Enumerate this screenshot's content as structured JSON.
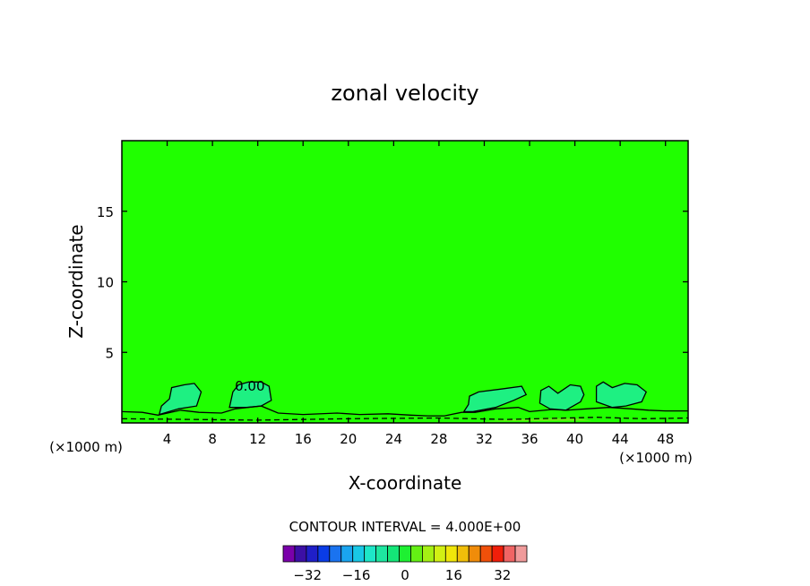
{
  "chart_data": {
    "type": "contour",
    "title": "zonal velocity",
    "xlabel": "X-coordinate",
    "ylabel": "Z-coordinate",
    "x_unit_label": "(×1000 m)",
    "xlim": [
      0,
      50
    ],
    "ylim": [
      0,
      20
    ],
    "x_ticks": [
      4,
      8,
      12,
      16,
      20,
      24,
      28,
      32,
      36,
      40,
      44,
      48
    ],
    "y_ticks": [
      5,
      10,
      15
    ],
    "contour_labels": [
      {
        "x": 11.3,
        "y": 2.3,
        "text": "0.00"
      }
    ],
    "contour_interval_text": "CONTOUR INTERVAL = 4.000E+00",
    "colorbar": {
      "levels": [
        -40,
        -36,
        -32,
        -28,
        -24,
        -20,
        -16,
        -12,
        -8,
        -4,
        0,
        4,
        8,
        12,
        16,
        20,
        24,
        28,
        32,
        36,
        40
      ],
      "colors": [
        "#7a00aa",
        "#3c0fa5",
        "#1f1fc8",
        "#0a3ce6",
        "#1a73f0",
        "#1aa5f0",
        "#19c8e6",
        "#1ee6c8",
        "#1ee6a0",
        "#14e678",
        "#1ef032",
        "#64f014",
        "#a5f014",
        "#d2f014",
        "#f0e60a",
        "#f0be0a",
        "#f08c0a",
        "#f0500a",
        "#f01e0a",
        "#f06464",
        "#f09b9b"
      ],
      "tick_values": [
        -32,
        -16,
        0,
        16,
        32
      ],
      "tick_labels": [
        "−32",
        "−16",
        "0",
        "16",
        "32"
      ]
    },
    "background_field_color": "#20ff00",
    "contour_regions": [
      {
        "name": "region-1",
        "level": -4,
        "color": "#1ef082",
        "polygon": [
          [
            3.3,
            0.6
          ],
          [
            3.5,
            1.2
          ],
          [
            4.2,
            1.7
          ],
          [
            4.4,
            2.5
          ],
          [
            5.5,
            2.7
          ],
          [
            6.4,
            2.8
          ],
          [
            7.0,
            2.2
          ],
          [
            6.6,
            1.2
          ],
          [
            5.0,
            1.0
          ],
          [
            3.3,
            0.6
          ]
        ]
      },
      {
        "name": "region-2",
        "level": -4,
        "color": "#1ef082",
        "polygon": [
          [
            9.5,
            1.1
          ],
          [
            9.8,
            2.2
          ],
          [
            10.3,
            2.7
          ],
          [
            11.2,
            2.9
          ],
          [
            12.3,
            2.9
          ],
          [
            13.0,
            2.6
          ],
          [
            13.2,
            1.6
          ],
          [
            12.3,
            1.2
          ],
          [
            11.0,
            1.1
          ],
          [
            9.5,
            1.1
          ]
        ]
      },
      {
        "name": "region-3",
        "level": -4,
        "color": "#1ef082",
        "polygon": [
          [
            30.2,
            0.8
          ],
          [
            30.6,
            1.3
          ],
          [
            30.7,
            1.9
          ],
          [
            31.5,
            2.2
          ],
          [
            33.5,
            2.4
          ],
          [
            35.3,
            2.6
          ],
          [
            35.7,
            2.0
          ],
          [
            34.6,
            1.6
          ],
          [
            33.0,
            1.1
          ],
          [
            31.0,
            0.8
          ],
          [
            30.2,
            0.8
          ]
        ]
      },
      {
        "name": "region-4",
        "level": -4,
        "color": "#1ef082",
        "polygon": [
          [
            36.9,
            1.4
          ],
          [
            37.0,
            2.3
          ],
          [
            37.7,
            2.6
          ],
          [
            38.5,
            2.1
          ],
          [
            39.6,
            2.7
          ],
          [
            40.5,
            2.6
          ],
          [
            40.8,
            2.0
          ],
          [
            40.5,
            1.5
          ],
          [
            39.2,
            0.9
          ],
          [
            37.8,
            1.0
          ],
          [
            36.9,
            1.4
          ]
        ]
      },
      {
        "name": "region-5",
        "level": -4,
        "color": "#1ef082",
        "polygon": [
          [
            41.9,
            1.5
          ],
          [
            41.9,
            2.6
          ],
          [
            42.5,
            2.9
          ],
          [
            43.3,
            2.5
          ],
          [
            44.4,
            2.8
          ],
          [
            45.5,
            2.7
          ],
          [
            46.3,
            2.2
          ],
          [
            45.9,
            1.5
          ],
          [
            44.5,
            1.2
          ],
          [
            43.3,
            1.1
          ],
          [
            41.9,
            1.5
          ]
        ]
      },
      {
        "name": "region-6",
        "level": 4,
        "color": "#64f014",
        "polygon": [
          [
            32.0,
            0.1
          ],
          [
            34.5,
            0.25
          ],
          [
            37.0,
            0.3
          ],
          [
            40.0,
            0.35
          ],
          [
            41.5,
            0.15
          ],
          [
            32.0,
            0.1
          ]
        ]
      }
    ],
    "contour_lines": [
      {
        "name": "zero-contour-surface",
        "points": [
          [
            0,
            0.8
          ],
          [
            1.8,
            0.75
          ],
          [
            3.2,
            0.55
          ],
          [
            5.2,
            0.9
          ],
          [
            6.8,
            0.75
          ],
          [
            8.8,
            0.7
          ],
          [
            10.0,
            1.0
          ],
          [
            12.3,
            1.2
          ],
          [
            13.8,
            0.7
          ],
          [
            16.0,
            0.6
          ],
          [
            19.0,
            0.7
          ],
          [
            21.0,
            0.6
          ],
          [
            23.5,
            0.65
          ],
          [
            25.5,
            0.55
          ],
          [
            27.0,
            0.5
          ],
          [
            28.5,
            0.5
          ],
          [
            30.0,
            0.75
          ],
          [
            31.2,
            0.75
          ],
          [
            33.0,
            1.0
          ],
          [
            35.0,
            1.1
          ],
          [
            36.0,
            0.8
          ],
          [
            38.0,
            0.95
          ],
          [
            39.3,
            0.9
          ],
          [
            41.0,
            1.0
          ],
          [
            43.0,
            1.1
          ],
          [
            45.0,
            1.0
          ],
          [
            46.5,
            0.9
          ],
          [
            48.0,
            0.85
          ],
          [
            50,
            0.85
          ]
        ]
      },
      {
        "name": "dashed-contour-low",
        "dashed": true,
        "points": [
          [
            0,
            0.3
          ],
          [
            6.0,
            0.25
          ],
          [
            12.0,
            0.2
          ],
          [
            20.0,
            0.3
          ],
          [
            28.0,
            0.35
          ],
          [
            34.0,
            0.25
          ],
          [
            42.0,
            0.4
          ],
          [
            46.0,
            0.3
          ],
          [
            50,
            0.35
          ]
        ]
      }
    ]
  }
}
